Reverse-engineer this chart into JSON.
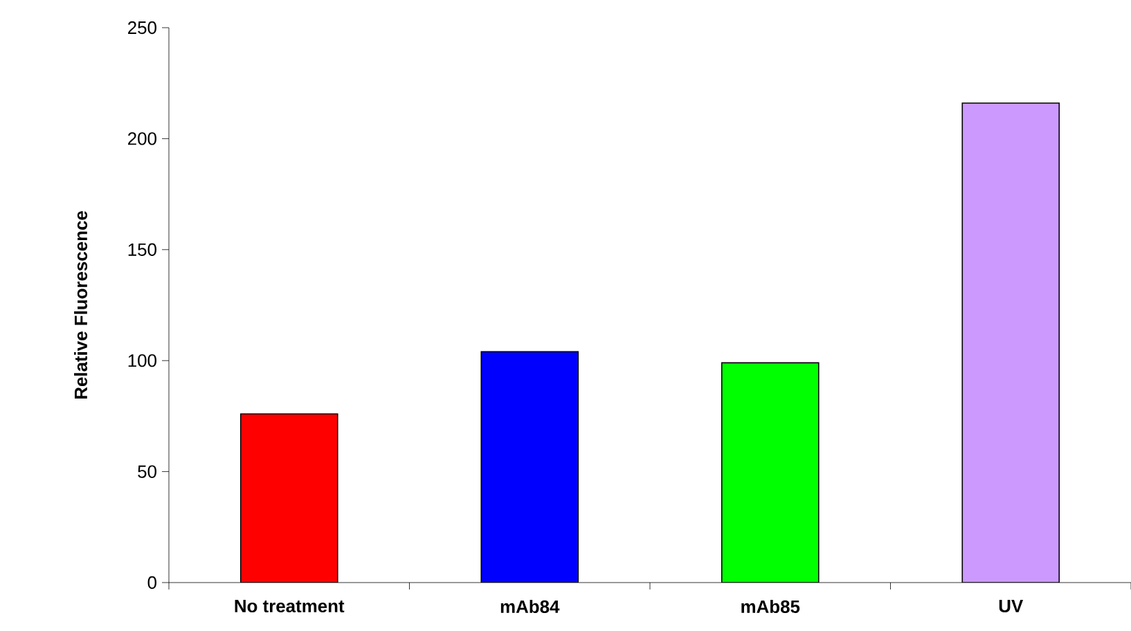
{
  "chart_data": {
    "type": "bar",
    "ylabel": "Relative Fluorescence",
    "categories": [
      "No treatment",
      "mAb84",
      "mAb85",
      "UV"
    ],
    "values": [
      76,
      104,
      99,
      216
    ],
    "colors": [
      "#ff0000",
      "#0000ff",
      "#00ff00",
      "#cc99ff"
    ],
    "ylim": [
      0,
      250
    ],
    "yticks": [
      0,
      50,
      100,
      150,
      200,
      250
    ]
  }
}
